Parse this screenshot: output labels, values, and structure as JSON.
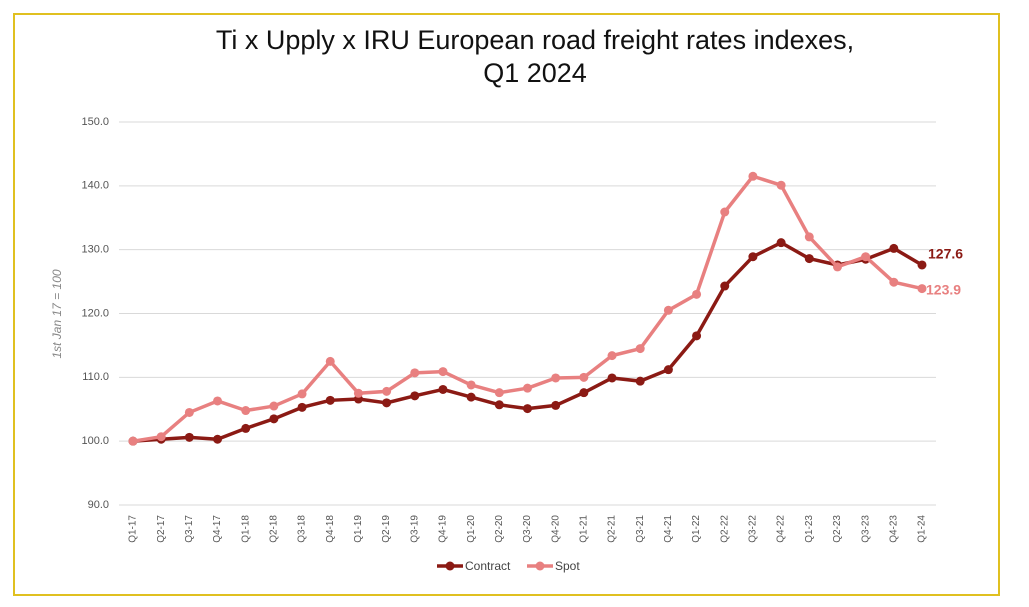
{
  "chart_data": {
    "type": "line",
    "title": [
      "Ti x Upply x IRU European road freight rates indexes,",
      "Q1 2024"
    ],
    "y_label": "1st Jan 17 = 100",
    "categories": [
      "Q1-17",
      "Q2-17",
      "Q3-17",
      "Q4-17",
      "Q1-18",
      "Q2-18",
      "Q3-18",
      "Q4-18",
      "Q1-19",
      "Q2-19",
      "Q3-19",
      "Q4-19",
      "Q1-20",
      "Q2-20",
      "Q3-20",
      "Q4-20",
      "Q1-21",
      "Q2-21",
      "Q3-21",
      "Q4-21",
      "Q1-22",
      "Q2-22",
      "Q3-22",
      "Q4-22",
      "Q1-23",
      "Q2-23",
      "Q3-23",
      "Q4-23",
      "Q1-24"
    ],
    "series": [
      {
        "name": "Contract",
        "color": "#8b1a14",
        "values": [
          100,
          100.3,
          100.6,
          100.3,
          102,
          103.5,
          105.3,
          106.4,
          106.6,
          106,
          107.1,
          108.1,
          106.9,
          105.7,
          105.1,
          105.6,
          107.6,
          109.9,
          109.4,
          111.2,
          116.5,
          124.3,
          128.9,
          131.1,
          128.6,
          127.6,
          128.5,
          130.2,
          127.6
        ]
      },
      {
        "name": "Spot",
        "color": "#e88080",
        "values": [
          100,
          100.7,
          104.5,
          106.3,
          104.8,
          105.5,
          107.4,
          112.5,
          107.5,
          107.8,
          110.7,
          110.9,
          108.8,
          107.6,
          108.3,
          109.9,
          110,
          113.4,
          114.5,
          120.5,
          123,
          135.9,
          141.5,
          140.1,
          132,
          127.3,
          128.9,
          124.9,
          123.9
        ]
      }
    ],
    "ylim": [
      90,
      150
    ],
    "yticks": [
      {
        "value": 90,
        "label": "90.0"
      },
      {
        "value": 100,
        "label": "100.0"
      },
      {
        "value": 110,
        "label": "110.0"
      },
      {
        "value": 120,
        "label": "120.0"
      },
      {
        "value": 130,
        "label": "130.0"
      },
      {
        "value": 140,
        "label": "140.0"
      },
      {
        "value": 150,
        "label": "150.0"
      }
    ],
    "grid": true,
    "legend": "bottom"
  }
}
